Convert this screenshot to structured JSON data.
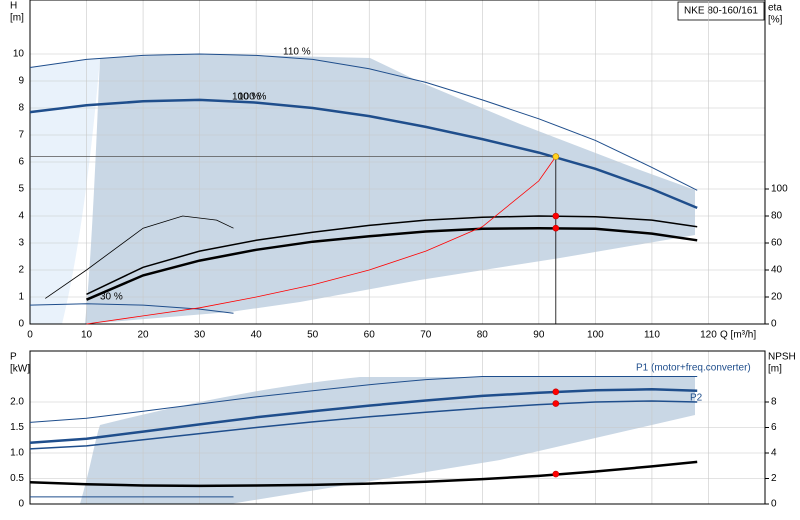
{
  "chart_data": [
    {
      "type": "line",
      "title": "NKE 80-160/161",
      "xlabel": "Q [m³/h]",
      "ylabel": [
        "H",
        "[m]"
      ],
      "y2label": [
        "eta",
        "[%]"
      ],
      "xlim": [
        0,
        130
      ],
      "xticks": [
        0,
        10,
        20,
        30,
        40,
        50,
        60,
        70,
        80,
        90,
        100,
        110,
        120
      ],
      "ylim": [
        0,
        12
      ],
      "yticks": [
        0,
        1,
        2,
        3,
        4,
        5,
        6,
        7,
        8,
        9,
        10
      ],
      "y2lim": [
        0,
        240
      ],
      "y2ticks": [
        0,
        20,
        40,
        60,
        80,
        100
      ],
      "grid": true,
      "series": [
        {
          "name": "110 %",
          "color": "#1f4e8c",
          "width": 1,
          "x": [
            0,
            10,
            20,
            30,
            40,
            50,
            60,
            70,
            80,
            90,
            100,
            110,
            118
          ],
          "values": [
            9.5,
            9.8,
            9.95,
            10.0,
            9.95,
            9.8,
            9.45,
            8.95,
            8.3,
            7.6,
            6.8,
            5.8,
            4.95
          ]
        },
        {
          "name": "100 %",
          "color": "#1f4e8c",
          "width": 2.5,
          "x": [
            0,
            10,
            20,
            30,
            40,
            50,
            60,
            70,
            80,
            90,
            100,
            110,
            118
          ],
          "values": [
            7.85,
            8.1,
            8.25,
            8.3,
            8.2,
            8.0,
            7.7,
            7.3,
            6.85,
            6.35,
            5.75,
            5.0,
            4.3
          ]
        },
        {
          "name": "30 %",
          "color": "#1f4e8c",
          "width": 1,
          "x": [
            0,
            10,
            20,
            30,
            36
          ],
          "values": [
            0.7,
            0.75,
            0.7,
            0.55,
            0.4
          ]
        },
        {
          "color": "#000000",
          "width": 1.5,
          "axis": "y2",
          "x": [
            10,
            20,
            30,
            40,
            50,
            60,
            70,
            80,
            90,
            100,
            110,
            118
          ],
          "values": [
            22,
            42,
            54,
            62,
            68,
            73,
            77,
            79,
            80,
            79.5,
            77,
            72
          ]
        },
        {
          "color": "#000000",
          "width": 2.5,
          "axis": "y2",
          "x": [
            10,
            20,
            30,
            40,
            50,
            60,
            70,
            80,
            90,
            100,
            110,
            118
          ],
          "values": [
            18,
            36,
            47,
            55,
            61,
            65,
            68.5,
            70.5,
            71,
            70.5,
            67,
            62
          ]
        },
        {
          "color": "#000000",
          "width": 0.8,
          "axis": "y2",
          "x": [
            2.7,
            10,
            20,
            27,
            33,
            36
          ],
          "values": [
            19,
            40,
            71,
            80,
            77,
            71
          ]
        },
        {
          "color": "#ff0000",
          "width": 0.8,
          "x": [
            10,
            20,
            30,
            40,
            50,
            60,
            70,
            80,
            90,
            93
          ],
          "values": [
            0,
            0.3,
            0.6,
            1.0,
            1.45,
            2.0,
            2.7,
            3.6,
            5.3,
            6.2
          ]
        }
      ],
      "duty_point": {
        "q": 93,
        "h": 6.2,
        "eta": [
          80,
          71
        ]
      }
    },
    {
      "type": "line",
      "ylabel": [
        "P",
        "[kW]"
      ],
      "y2label": [
        "NPSH",
        "[m]"
      ],
      "xlim": [
        0,
        130
      ],
      "xticks": [
        0,
        10,
        20,
        30,
        40,
        50,
        60,
        70,
        80,
        90,
        100,
        110,
        120
      ],
      "ylim": [
        0,
        3
      ],
      "yticks": [
        0,
        0.5,
        {
          "value": 1,
          "label": "1.0"
        },
        1.5,
        {
          "value": 2,
          "label": "2.0"
        }
      ],
      "y2lim": [
        0,
        12
      ],
      "y2ticks": [
        0,
        2,
        4,
        6,
        8
      ],
      "grid": true,
      "series": [
        {
          "name": "P1 (motor+freq.converter)",
          "color": "#1f4e8c",
          "width": 2.5,
          "x": [
            0,
            10,
            20,
            30,
            40,
            50,
            60,
            70,
            80,
            90,
            100,
            110,
            118
          ],
          "values": [
            1.2,
            1.28,
            1.42,
            1.56,
            1.7,
            1.82,
            1.93,
            2.03,
            2.12,
            2.18,
            2.23,
            2.25,
            2.22
          ]
        },
        {
          "name": "P2",
          "color": "#1f4e8c",
          "width": 1.5,
          "x": [
            0,
            10,
            20,
            30,
            40,
            50,
            60,
            70,
            80,
            90,
            100,
            110,
            118
          ],
          "values": [
            1.08,
            1.14,
            1.26,
            1.38,
            1.5,
            1.61,
            1.71,
            1.8,
            1.88,
            1.95,
            2.0,
            2.02,
            2.0
          ]
        },
        {
          "color": "#1f4e8c",
          "width": 1,
          "x": [
            0,
            10,
            20,
            30,
            40,
            50,
            60,
            70,
            80,
            90,
            100,
            110,
            118
          ],
          "values": [
            1.6,
            1.68,
            1.82,
            1.96,
            2.1,
            2.22,
            2.34,
            2.44,
            2.5,
            2.5,
            2.5,
            2.5,
            2.5
          ]
        },
        {
          "color": "#1f4e8c",
          "width": 1,
          "x": [
            0,
            10,
            20,
            30,
            36
          ],
          "values": [
            0.14,
            0.14,
            0.14,
            0.14,
            0.14
          ]
        },
        {
          "color": "#000000",
          "width": 2.5,
          "axis": "y2",
          "x": [
            0,
            10,
            20,
            30,
            40,
            50,
            60,
            70,
            80,
            90,
            100,
            110,
            118
          ],
          "values": [
            1.7,
            1.55,
            1.45,
            1.42,
            1.45,
            1.5,
            1.6,
            1.75,
            1.95,
            2.2,
            2.55,
            2.95,
            3.3
          ]
        }
      ],
      "duty_point": {
        "q": 93,
        "p": [
          2.2,
          1.97
        ],
        "npsh": 2.35
      }
    }
  ]
}
